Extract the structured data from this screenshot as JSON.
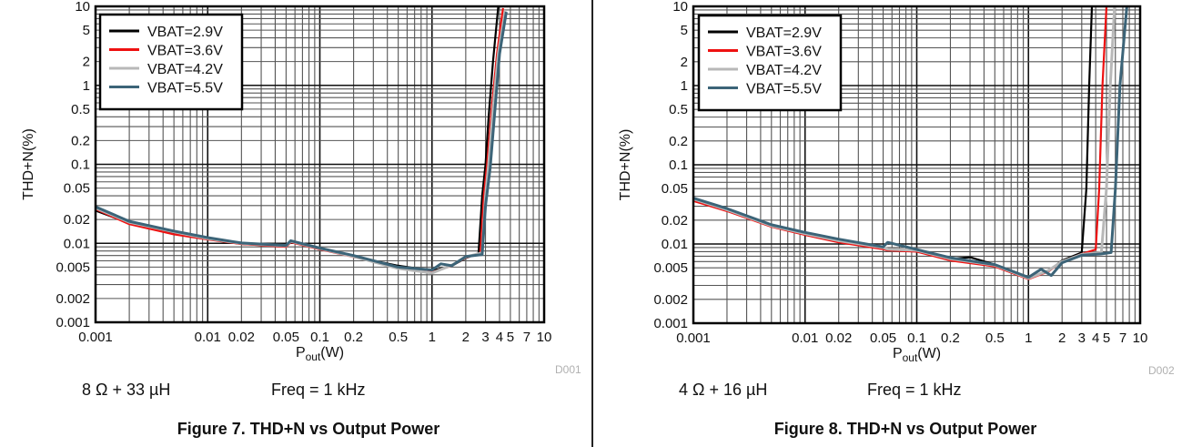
{
  "chart_data": [
    {
      "type": "line",
      "figure_id": "D001",
      "caption": "Figure 7. THD+N vs Output Power",
      "xlabel_main": "P",
      "xlabel_sub": "out",
      "xlabel_unit": "(W)",
      "ylabel": "THD+N(%)",
      "xscale": "log",
      "yscale": "log",
      "xlim": [
        0.001,
        10
      ],
      "ylim": [
        0.001,
        10
      ],
      "grid": true,
      "legend_position": "top-left",
      "x_ticks": [
        0.001,
        0.01,
        0.02,
        0.05,
        0.1,
        0.2,
        0.5,
        1,
        2,
        3,
        4,
        5,
        7,
        10
      ],
      "x_tick_labels": [
        "0.001",
        "0.01",
        "0.02",
        "0.05",
        "0.1",
        "0.2",
        "0.5",
        "1",
        "2",
        "3",
        "4",
        "5",
        "7",
        "10"
      ],
      "y_ticks": [
        0.001,
        0.002,
        0.005,
        0.01,
        0.02,
        0.05,
        0.1,
        0.2,
        0.5,
        1,
        2,
        5,
        10
      ],
      "y_tick_labels": [
        "0.001",
        "0.002",
        "0.005",
        "0.01",
        "0.02",
        "0.05",
        "0.1",
        "0.2",
        "0.5",
        "1",
        "2",
        "5",
        "10"
      ],
      "notes": {
        "load": "8 Ω + 33 µH",
        "freq": "Freq = 1 kHz"
      },
      "series": [
        {
          "name": "VBAT=2.9V",
          "color": "#000000",
          "x": [
            0.001,
            0.002,
            0.005,
            0.01,
            0.02,
            0.05,
            0.055,
            0.1,
            0.2,
            0.5,
            1,
            1.5,
            2,
            2.6,
            2.8,
            3.0,
            3.2,
            3.5,
            3.9
          ],
          "y": [
            0.026,
            0.018,
            0.0135,
            0.0115,
            0.0098,
            0.0092,
            0.0105,
            0.0085,
            0.0068,
            0.0052,
            0.0045,
            0.0052,
            0.0065,
            0.0075,
            0.04,
            0.1,
            0.4,
            2.0,
            10
          ]
        },
        {
          "name": "VBAT=3.6V",
          "color": "#ee1111",
          "x": [
            0.001,
            0.002,
            0.005,
            0.01,
            0.02,
            0.05,
            0.055,
            0.1,
            0.2,
            0.5,
            1,
            1.5,
            2,
            2.7,
            2.9,
            3.1,
            3.4,
            3.8,
            4.3
          ],
          "y": [
            0.027,
            0.0175,
            0.013,
            0.0112,
            0.0098,
            0.009,
            0.0103,
            0.0084,
            0.0067,
            0.005,
            0.0043,
            0.0052,
            0.0066,
            0.0075,
            0.04,
            0.1,
            0.5,
            2.5,
            9.5
          ]
        },
        {
          "name": "VBAT=4.2V",
          "color": "#b8b8b8",
          "x": [
            0.001,
            0.002,
            0.005,
            0.01,
            0.02,
            0.05,
            0.055,
            0.1,
            0.2,
            0.5,
            1,
            1.5,
            2,
            2.8,
            3.0,
            3.2,
            3.5,
            3.9,
            4.5
          ],
          "y": [
            0.028,
            0.0185,
            0.014,
            0.0115,
            0.01,
            0.0093,
            0.0106,
            0.0086,
            0.0068,
            0.0048,
            0.0042,
            0.0053,
            0.0067,
            0.0076,
            0.04,
            0.1,
            0.5,
            2.5,
            9
          ]
        },
        {
          "name": "VBAT=5.5V",
          "color": "#3c6478",
          "x": [
            0.001,
            0.002,
            0.005,
            0.01,
            0.02,
            0.05,
            0.055,
            0.1,
            0.2,
            0.5,
            1,
            1.2,
            1.5,
            2,
            2.8,
            3.0,
            3.3,
            3.6,
            4.0,
            4.6
          ],
          "y": [
            0.029,
            0.019,
            0.0143,
            0.0118,
            0.0101,
            0.0094,
            0.0108,
            0.0087,
            0.007,
            0.005,
            0.0046,
            0.0055,
            0.0052,
            0.0068,
            0.0072,
            0.03,
            0.09,
            0.4,
            2.5,
            8.5
          ]
        }
      ]
    },
    {
      "type": "line",
      "figure_id": "D002",
      "caption": "Figure 8. THD+N vs Output Power",
      "xlabel_main": "P",
      "xlabel_sub": "out",
      "xlabel_unit": "(W)",
      "ylabel": "THD+N(%)",
      "xscale": "log",
      "yscale": "log",
      "xlim": [
        0.001,
        10
      ],
      "ylim": [
        0.001,
        10
      ],
      "grid": true,
      "legend_position": "top-left",
      "x_ticks": [
        0.001,
        0.01,
        0.02,
        0.05,
        0.1,
        0.2,
        0.5,
        1,
        2,
        3,
        4,
        5,
        7,
        10
      ],
      "x_tick_labels": [
        "0.001",
        "0.01",
        "0.02",
        "0.05",
        "0.1",
        "0.2",
        "0.5",
        "1",
        "2",
        "3",
        "4",
        "5",
        "7",
        "10"
      ],
      "y_ticks": [
        0.001,
        0.002,
        0.005,
        0.01,
        0.02,
        0.05,
        0.1,
        0.2,
        0.5,
        1,
        2,
        5,
        10
      ],
      "y_tick_labels": [
        "0.001",
        "0.002",
        "0.005",
        "0.01",
        "0.02",
        "0.05",
        "0.1",
        "0.2",
        "0.5",
        "1",
        "2",
        "5",
        "10"
      ],
      "notes": {
        "load": "4 Ω + 16 µH",
        "freq": "Freq = 1 kHz"
      },
      "series": [
        {
          "name": "VBAT=2.9V",
          "color": "#000000",
          "x": [
            0.001,
            0.002,
            0.005,
            0.01,
            0.02,
            0.05,
            0.055,
            0.1,
            0.2,
            0.3,
            0.5,
            1,
            1.5,
            2,
            3.0,
            3.3,
            3.5,
            3.7
          ],
          "y": [
            0.036,
            0.027,
            0.017,
            0.0135,
            0.011,
            0.0088,
            0.0085,
            0.0082,
            0.0065,
            0.0068,
            0.0055,
            0.0038,
            0.0045,
            0.0062,
            0.0078,
            0.05,
            1.0,
            10
          ]
        },
        {
          "name": "VBAT=3.6V",
          "color": "#ee1111",
          "x": [
            0.001,
            0.002,
            0.005,
            0.01,
            0.02,
            0.05,
            0.055,
            0.1,
            0.2,
            0.5,
            1,
            1.5,
            2,
            3.0,
            4.0,
            4.3,
            4.6,
            5.0
          ],
          "y": [
            0.035,
            0.026,
            0.0165,
            0.013,
            0.0105,
            0.0086,
            0.0083,
            0.008,
            0.0062,
            0.0052,
            0.0036,
            0.0045,
            0.006,
            0.0075,
            0.0085,
            0.05,
            1.0,
            10
          ]
        },
        {
          "name": "VBAT=4.2V",
          "color": "#b8b8b8",
          "x": [
            0.001,
            0.002,
            0.005,
            0.01,
            0.02,
            0.05,
            0.055,
            0.1,
            0.2,
            0.5,
            1,
            1.5,
            2,
            3.0,
            4.5,
            5.0,
            5.4,
            5.9
          ],
          "y": [
            0.037,
            0.027,
            0.017,
            0.0135,
            0.011,
            0.009,
            0.0086,
            0.0083,
            0.0065,
            0.0054,
            0.0037,
            0.0046,
            0.006,
            0.0074,
            0.0078,
            0.05,
            1.0,
            10
          ]
        },
        {
          "name": "VBAT=5.5V",
          "color": "#3c6478",
          "x": [
            0.001,
            0.002,
            0.005,
            0.01,
            0.02,
            0.05,
            0.055,
            0.1,
            0.2,
            0.5,
            1,
            1.3,
            1.6,
            2,
            3.0,
            4.5,
            5.5,
            6.0,
            6.6,
            7.6
          ],
          "y": [
            0.038,
            0.028,
            0.0175,
            0.014,
            0.0115,
            0.0092,
            0.0105,
            0.0085,
            0.0067,
            0.0055,
            0.0038,
            0.0048,
            0.004,
            0.0058,
            0.0072,
            0.0075,
            0.0078,
            0.05,
            1.0,
            10
          ]
        }
      ]
    }
  ]
}
